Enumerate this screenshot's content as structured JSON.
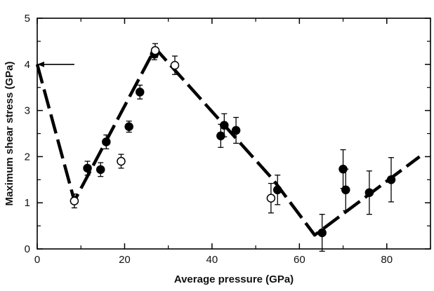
{
  "chart_data": {
    "type": "scatter",
    "title": "",
    "xlabel": "Average pressure (GPa)",
    "ylabel": "Maximum shear stress (GPa)",
    "xlim": [
      0,
      90
    ],
    "ylim": [
      0,
      5
    ],
    "x_ticks": [
      0,
      20,
      40,
      60,
      80
    ],
    "y_ticks": [
      0,
      1,
      2,
      3,
      4,
      5
    ],
    "grid": false,
    "series": [
      {
        "name": "filled",
        "marker": "filled-circle",
        "points": [
          {
            "x": 11.5,
            "y": 1.75,
            "err": 0.15
          },
          {
            "x": 14.5,
            "y": 1.72,
            "err": 0.15
          },
          {
            "x": 15.8,
            "y": 2.32,
            "err": 0.15
          },
          {
            "x": 21.0,
            "y": 2.65,
            "err": 0.12
          },
          {
            "x": 23.5,
            "y": 3.4,
            "err": 0.15
          },
          {
            "x": 26.8,
            "y": 4.22,
            "err": 0.12
          },
          {
            "x": 42.0,
            "y": 2.45,
            "err": 0.25
          },
          {
            "x": 42.8,
            "y": 2.68,
            "err": 0.25
          },
          {
            "x": 45.5,
            "y": 2.57,
            "err": 0.28
          },
          {
            "x": 55.0,
            "y": 1.28,
            "err": 0.32
          },
          {
            "x": 65.2,
            "y": 0.35,
            "err": 0.4
          },
          {
            "x": 70.0,
            "y": 1.73,
            "err": 0.42
          },
          {
            "x": 70.6,
            "y": 1.28,
            "err": 0.45
          },
          {
            "x": 76.0,
            "y": 1.22,
            "err": 0.47
          },
          {
            "x": 81.0,
            "y": 1.5,
            "err": 0.48
          }
        ]
      },
      {
        "name": "open",
        "marker": "open-circle",
        "points": [
          {
            "x": 8.5,
            "y": 1.04,
            "err": 0.15
          },
          {
            "x": 19.2,
            "y": 1.9,
            "err": 0.15
          },
          {
            "x": 27.0,
            "y": 4.3,
            "err": 0.15
          },
          {
            "x": 31.5,
            "y": 3.98,
            "err": 0.2
          },
          {
            "x": 53.5,
            "y": 1.1,
            "err": 0.32
          }
        ]
      }
    ],
    "trend_line": {
      "style": "dashed",
      "x": [
        0,
        8.5,
        27,
        54,
        63.5,
        87.5
      ],
      "y": [
        4.0,
        1.04,
        4.35,
        1.5,
        0.3,
        2.0
      ]
    },
    "annotations": [
      {
        "type": "arrow",
        "points_to": {
          "x": 0,
          "y": 4.0
        },
        "from": {
          "x": 8.5,
          "y": 4.0
        }
      }
    ]
  }
}
